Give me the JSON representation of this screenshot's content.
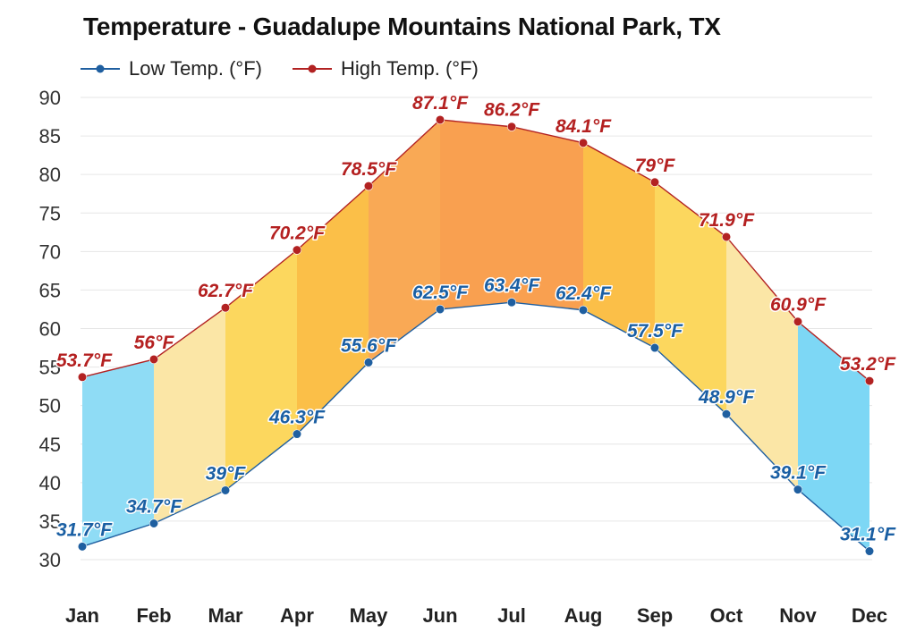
{
  "chart_data": {
    "type": "area",
    "title": "Temperature - Guadalupe Mountains National Park, TX",
    "categories": [
      "Jan",
      "Feb",
      "Mar",
      "Apr",
      "May",
      "Jun",
      "Jul",
      "Aug",
      "Sep",
      "Oct",
      "Nov",
      "Dec"
    ],
    "ylim": [
      30,
      90
    ],
    "yticks": [
      30,
      35,
      40,
      45,
      50,
      55,
      60,
      65,
      70,
      75,
      80,
      85,
      90
    ],
    "grid": true,
    "legend_position": "top-left",
    "series": [
      {
        "name": "Low Temp. (°F)",
        "color": "#1f5fa0",
        "values": [
          31.7,
          34.7,
          39,
          46.3,
          55.6,
          62.5,
          63.4,
          62.4,
          57.5,
          48.9,
          39.1,
          31.1
        ],
        "labels": [
          "31.7°F",
          "34.7°F",
          "39°F",
          "46.3°F",
          "55.6°F",
          "62.5°F",
          "63.4°F",
          "62.4°F",
          "57.5°F",
          "48.9°F",
          "39.1°F",
          "31.1°F"
        ]
      },
      {
        "name": "High Temp. (°F)",
        "color": "#b22222",
        "values": [
          53.7,
          56,
          62.7,
          70.2,
          78.5,
          87.1,
          86.2,
          84.1,
          79,
          71.9,
          60.9,
          53.2
        ],
        "labels": [
          "53.7°F",
          "56°F",
          "62.7°F",
          "70.2°F",
          "78.5°F",
          "87.1°F",
          "86.2°F",
          "84.1°F",
          "79°F",
          "71.9°F",
          "60.9°F",
          "53.2°F"
        ]
      }
    ],
    "band_colors": [
      "#8fdcf5",
      "#fbe6a6",
      "#fcd75e",
      "#fbbf48",
      "#f9a955",
      "#f9a050",
      "#f9a050",
      "#fbbf48",
      "#fcd75e",
      "#fbe6a6",
      "#7dd7f5"
    ],
    "label_colors": {
      "low": "#1a5fa3",
      "high": "#b42020"
    }
  }
}
